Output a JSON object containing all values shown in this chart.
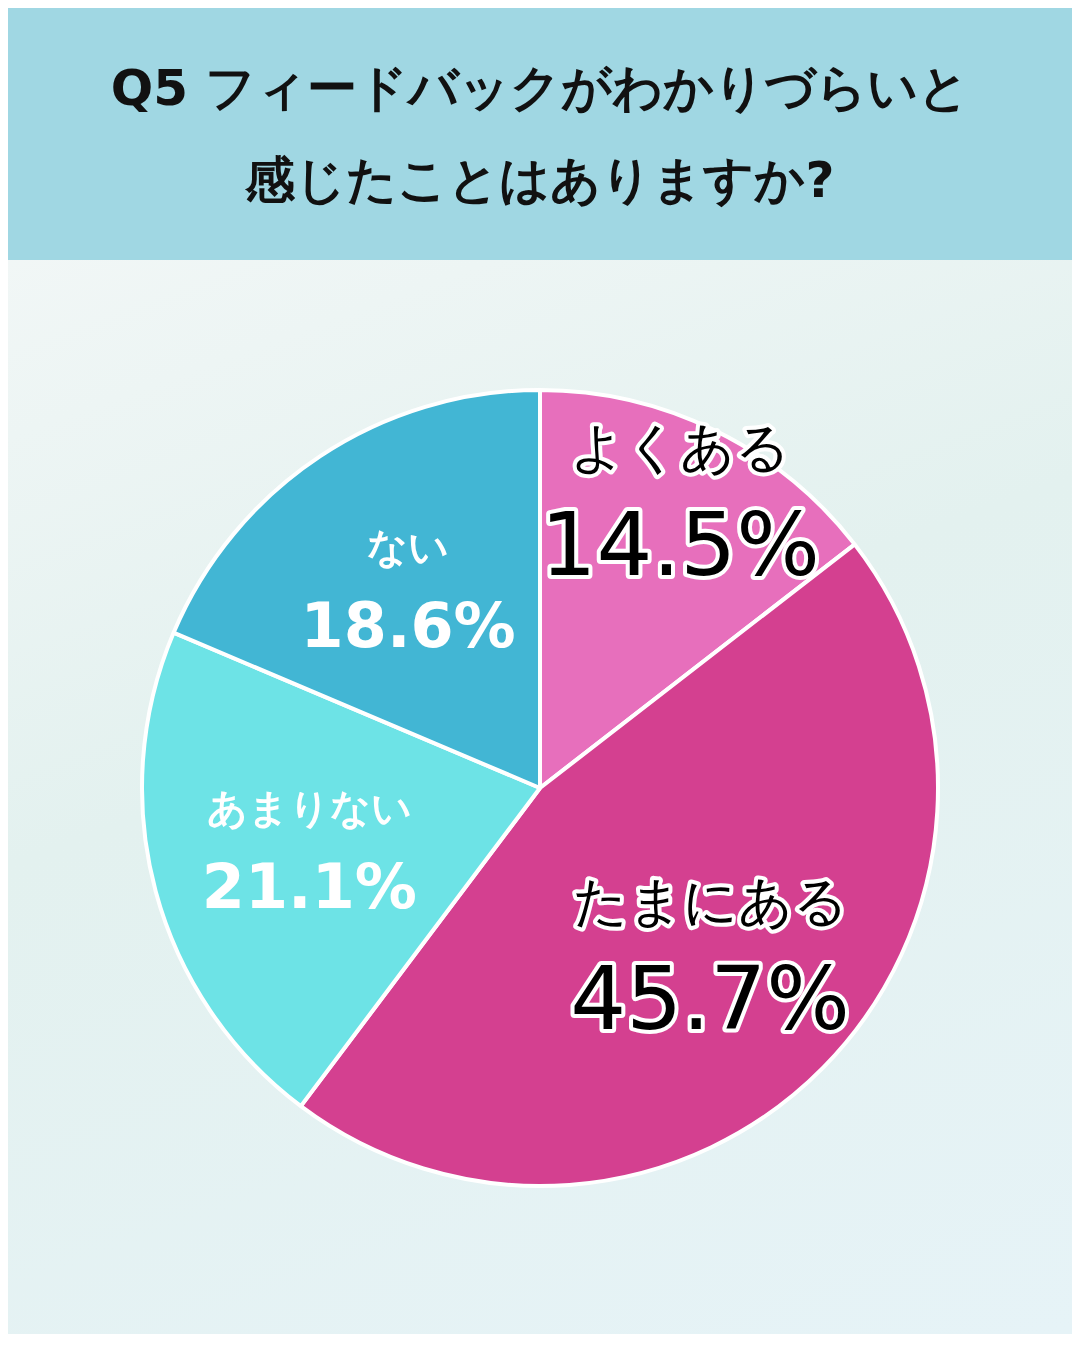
{
  "chart_data": {
    "type": "pie",
    "title": "Q5 フィードバックがわかりづらいと感じたことはありますか?",
    "categories": [
      "よくある",
      "たまにある",
      "あまりない",
      "ない"
    ],
    "values": [
      14.5,
      45.7,
      21.1,
      18.6
    ],
    "value_labels": [
      "14.5%",
      "45.7%",
      "21.1%",
      "18.6%"
    ],
    "colors": [
      "#e76fbc",
      "#d44090",
      "#6de3e6",
      "#42b6d4"
    ],
    "legend": false
  }
}
